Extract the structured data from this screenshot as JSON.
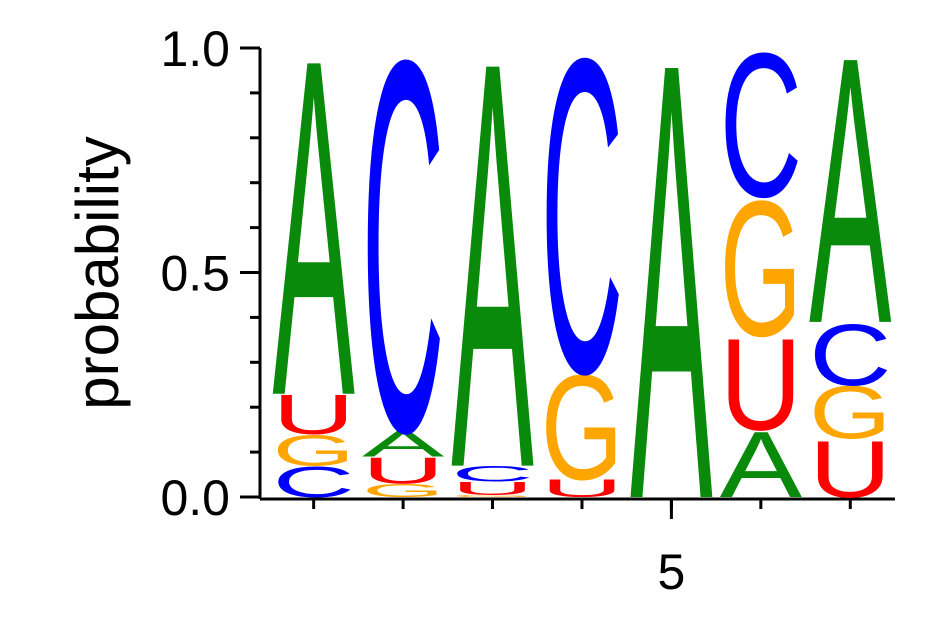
{
  "chart_data": {
    "type": "logo",
    "y_label": "probability",
    "x": [
      1,
      2,
      3,
      4,
      5,
      6,
      7
    ],
    "positions": [
      {
        "letters": [
          "C",
          "G",
          "U",
          "A"
        ],
        "values": [
          0.07,
          0.07,
          0.09,
          0.77
        ]
      },
      {
        "letters": [
          "G",
          "U",
          "A",
          "C"
        ],
        "values": [
          0.03,
          0.06,
          0.06,
          0.85
        ]
      },
      {
        "letters": [
          "G",
          "U",
          "C",
          "A"
        ],
        "values": [
          0.005,
          0.03,
          0.035,
          0.93
        ]
      },
      {
        "letters": [
          "U",
          "G",
          "C"
        ],
        "values": [
          0.04,
          0.24,
          0.72
        ]
      },
      {
        "letters": [
          "A"
        ],
        "values": [
          1.0
        ]
      },
      {
        "letters": [
          "A",
          "U",
          "G",
          "C"
        ],
        "values": [
          0.15,
          0.21,
          0.31,
          0.33
        ]
      },
      {
        "letters": [
          "U",
          "G",
          "C",
          "A"
        ],
        "values": [
          0.13,
          0.12,
          0.14,
          0.61
        ]
      }
    ],
    "colors": {
      "A": "#0a8a0a",
      "C": "#0000ff",
      "G": "#ffa500",
      "U": "#ff0000"
    },
    "xlim": [
      0.4,
      7.5
    ],
    "xticks": [
      5
    ],
    "ylim": [
      0,
      1
    ],
    "yticks": [
      {
        "value": 0,
        "label": "0.0"
      },
      {
        "value": 0.5,
        "label": "0.5"
      },
      {
        "value": 1,
        "label": "1.0"
      }
    ],
    "yminorticks": [
      0.1,
      0.2,
      0.3,
      0.4,
      0.6,
      0.7,
      0.8,
      0.9
    ]
  }
}
